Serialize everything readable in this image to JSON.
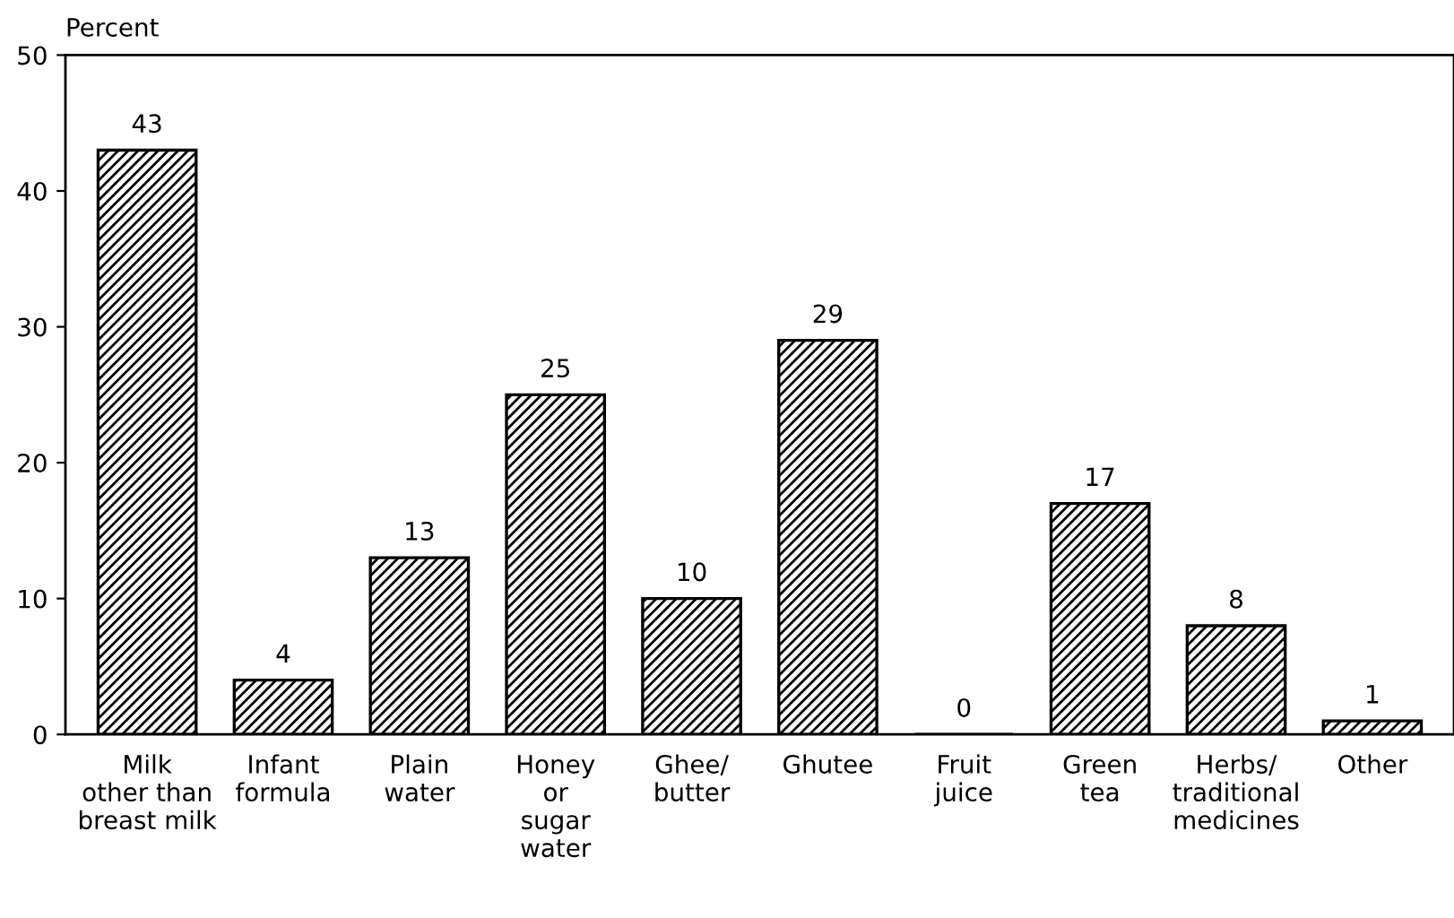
{
  "chart_data": {
    "type": "bar",
    "ylabel": "Percent",
    "categories": [
      "Milk\nother than\nbreast milk",
      "Infant\nformula",
      "Plain\nwater",
      "Honey\nor\nsugar\nwater",
      "Ghee/\nbutter",
      "Ghutee",
      "Fruit\njuice",
      "Green\ntea",
      "Herbs/\ntraditional\nmedicines",
      "Other"
    ],
    "values": [
      43,
      4,
      13,
      25,
      10,
      29,
      0,
      17,
      8,
      1
    ],
    "color": "#000000",
    "ylim": [
      0,
      50
    ],
    "yticks": [
      0,
      10,
      20,
      30,
      40,
      50
    ],
    "grid": false,
    "data_labels": true
  }
}
